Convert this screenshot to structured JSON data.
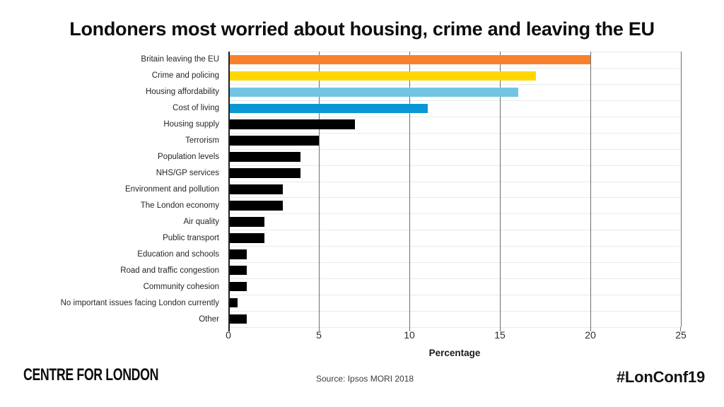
{
  "title": "Londoners most worried about housing, crime and leaving the EU",
  "chart_data": {
    "type": "bar",
    "orientation": "horizontal",
    "title": "Londoners most worried about housing, crime and leaving the EU",
    "categories": [
      "Britain leaving the EU",
      "Crime and policing",
      "Housing affordability",
      "Cost of living",
      "Housing supply",
      "Terrorism",
      "Population levels",
      "NHS/GP services",
      "Environment and pollution",
      "The London economy",
      "Air quality",
      "Public transport",
      "Education and schools",
      "Road and traffic congestion",
      "Community cohesion",
      "No important issues facing London currently",
      "Other"
    ],
    "values": [
      20,
      17,
      16,
      11,
      7,
      5,
      4,
      4,
      3,
      3,
      2,
      2,
      1,
      1,
      1,
      0.5,
      1
    ],
    "bar_colors": [
      "#F9812E",
      "#FFD803",
      "#70C6E2",
      "#0A97D5",
      "#000000",
      "#000000",
      "#000000",
      "#000000",
      "#000000",
      "#000000",
      "#000000",
      "#000000",
      "#000000",
      "#000000",
      "#000000",
      "#000000",
      "#000000"
    ],
    "xlabel": "Percentage",
    "xlim": [
      0,
      25
    ],
    "xticks": [
      0,
      5,
      10,
      15,
      20,
      25
    ],
    "grid": "vertical gray lines at x ticks, light horizontal row separator lines",
    "legend": "none"
  },
  "colors": {
    "accent_orange": "#F9812E",
    "accent_yellow": "#FFD803",
    "accent_lightblue": "#70C6E2",
    "accent_blue": "#0A97D5",
    "bar_default": "#000000",
    "gridline": "#6e6e6e",
    "row_line": "#e6ebeb",
    "axis": "#1f1f1f"
  },
  "footer": {
    "logo_text": "CENTRE FOR LONDON",
    "source": "Source: Ipsos MORI 2018",
    "hashtag": "#LonConf19"
  }
}
